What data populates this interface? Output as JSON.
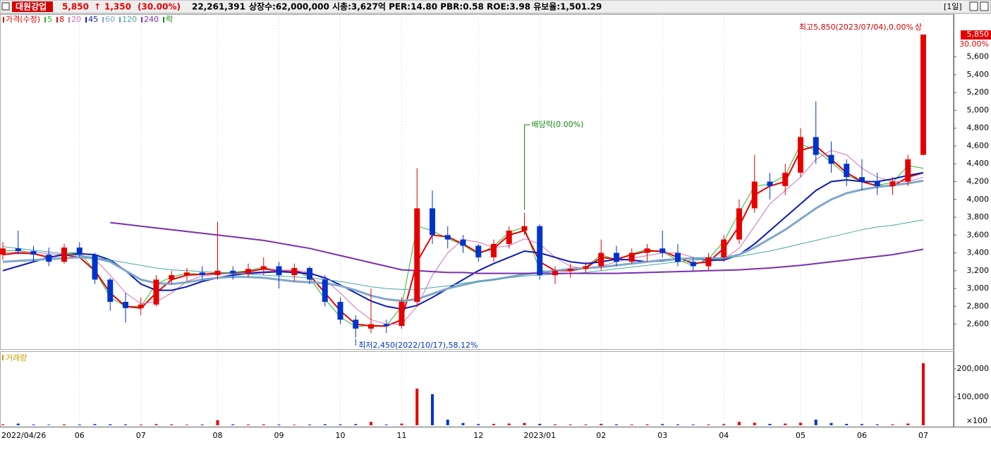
{
  "header": {
    "name": "대원강업",
    "price": "5,850",
    "arrow": "↑",
    "change": "1,350",
    "change_pct": "(30.00%)",
    "volume": "22,261,391",
    "stats": "상장수:62,000,000 시총:3,627억 PER:14.80 PBR:0.58 ROE:3.98 유보율:1,501.29",
    "period": "[1일]"
  },
  "chart_data": {
    "type": "candlestick",
    "price_label": "가격(수정)",
    "ex_dividend_legend": "락",
    "categories": [
      "2022/04/26",
      null,
      null,
      null,
      null,
      "06",
      null,
      null,
      null,
      "07",
      null,
      null,
      null,
      null,
      "08",
      null,
      null,
      null,
      "09",
      null,
      null,
      null,
      "10",
      null,
      null,
      null,
      "11",
      null,
      null,
      null,
      null,
      "12",
      null,
      null,
      null,
      "2023/01",
      null,
      null,
      null,
      "02",
      null,
      null,
      null,
      "03",
      null,
      null,
      null,
      "04",
      null,
      null,
      null,
      null,
      "05",
      null,
      null,
      null,
      "06",
      null,
      null,
      null,
      "07"
    ],
    "open": [
      3380,
      3450,
      3420,
      3380,
      3300,
      3460,
      3380,
      3100,
      2850,
      2780,
      2820,
      3100,
      3150,
      3180,
      3150,
      3200,
      3170,
      3220,
      3250,
      3150,
      3230,
      3100,
      2850,
      2650,
      2550,
      2600,
      2580,
      2850,
      3900,
      3600,
      3550,
      3480,
      3350,
      3500,
      3650,
      3700,
      3150,
      3200,
      3220,
      3250,
      3400,
      3300,
      3400,
      3450,
      3400,
      3300,
      3250,
      3350,
      3550,
      3900,
      4200,
      4150,
      4300,
      4700,
      4500,
      4400,
      4250,
      4200,
      4150,
      4200,
      4500
    ],
    "high": [
      3520,
      3650,
      3480,
      3460,
      3500,
      3520,
      3400,
      3120,
      2950,
      2900,
      3150,
      3200,
      3230,
      3250,
      3750,
      3250,
      3280,
      3350,
      3300,
      3280,
      3250,
      3150,
      2900,
      2700,
      3000,
      2650,
      2900,
      4350,
      4100,
      3700,
      3600,
      3500,
      3550,
      3700,
      3850,
      3720,
      3250,
      3280,
      3300,
      3550,
      3480,
      3450,
      3500,
      3650,
      3500,
      3350,
      3400,
      3600,
      4000,
      4500,
      4300,
      4400,
      4800,
      5100,
      4650,
      4450,
      4450,
      4300,
      4250,
      4500,
      5850
    ],
    "low": [
      3320,
      3380,
      3300,
      3250,
      3280,
      3350,
      3050,
      2750,
      2620,
      2700,
      2800,
      3050,
      3080,
      3100,
      3100,
      3100,
      3130,
      3150,
      3000,
      3080,
      3050,
      2800,
      2600,
      2450,
      2500,
      2500,
      2550,
      2800,
      3500,
      3450,
      3400,
      3300,
      3300,
      3450,
      3600,
      3100,
      3050,
      3120,
      3180,
      3200,
      3250,
      3280,
      3300,
      3350,
      3250,
      3200,
      3200,
      3300,
      3500,
      3850,
      4000,
      4050,
      4250,
      4400,
      4300,
      4150,
      4100,
      4050,
      4050,
      4150,
      4500
    ],
    "close": [
      3450,
      3420,
      3380,
      3300,
      3460,
      3380,
      3100,
      2850,
      2780,
      2820,
      3100,
      3150,
      3180,
      3150,
      3200,
      3170,
      3220,
      3250,
      3150,
      3230,
      3100,
      2850,
      2650,
      2550,
      2600,
      2580,
      2850,
      3900,
      3600,
      3550,
      3480,
      3350,
      3500,
      3650,
      3700,
      3150,
      3200,
      3220,
      3250,
      3400,
      3300,
      3400,
      3450,
      3400,
      3300,
      3250,
      3350,
      3550,
      3900,
      4200,
      4150,
      4300,
      4700,
      4500,
      4400,
      4250,
      4200,
      4150,
      4200,
      4450,
      5850
    ],
    "up_color": "#e60000",
    "down_color": "#0033cc",
    "ylim": [
      2320,
      6080
    ],
    "yticks": [
      {
        "value": 2600,
        "label": "2,600"
      },
      {
        "value": 2800,
        "label": "2,800"
      },
      {
        "value": 3000,
        "label": "3,000"
      },
      {
        "value": 3200,
        "label": "3,200"
      },
      {
        "value": 3400,
        "label": "3,400"
      },
      {
        "value": 3600,
        "label": "3,600"
      },
      {
        "value": 3800,
        "label": "3,800"
      },
      {
        "value": 4000,
        "label": "4,000"
      },
      {
        "value": 4200,
        "label": "4,200"
      },
      {
        "value": 4400,
        "label": "4,400"
      },
      {
        "value": 4600,
        "label": "4,600"
      },
      {
        "value": 4800,
        "label": "4,800"
      },
      {
        "value": 5000,
        "label": "5,000"
      },
      {
        "value": 5200,
        "label": "5,200"
      },
      {
        "value": 5400,
        "label": "5,400"
      },
      {
        "value": 5600,
        "label": "5,600"
      }
    ],
    "grid": false,
    "series": [
      {
        "name": "5",
        "color": "#22bb22",
        "width": 1,
        "values": [
          3420,
          3430,
          3400,
          3340,
          3400,
          3400,
          3200,
          2900,
          2800,
          2800,
          3050,
          3130,
          3170,
          3160,
          3180,
          3180,
          3200,
          3240,
          3180,
          3210,
          3120,
          2880,
          2680,
          2570,
          2590,
          2580,
          2800,
          3700,
          3650,
          3560,
          3490,
          3380,
          3480,
          3630,
          3690,
          3200,
          3190,
          3210,
          3240,
          3380,
          3320,
          3390,
          3440,
          3410,
          3320,
          3260,
          3330,
          3530,
          3850,
          4150,
          4170,
          4270,
          4620,
          4550,
          4420,
          4270,
          4200,
          4160,
          4190,
          4380,
          4350
        ]
      },
      {
        "name": "8",
        "color": "#e60000",
        "width": 2,
        "values": [
          3380,
          3400,
          3390,
          3350,
          3380,
          3350,
          3200,
          2950,
          2800,
          2780,
          2950,
          3100,
          3150,
          3160,
          3170,
          3170,
          3190,
          3220,
          3200,
          3200,
          3150,
          2950,
          2750,
          2600,
          2580,
          2580,
          2650,
          3300,
          3600,
          3580,
          3500,
          3400,
          3450,
          3600,
          3650,
          3300,
          3200,
          3200,
          3230,
          3350,
          3330,
          3380,
          3420,
          3420,
          3350,
          3280,
          3300,
          3450,
          3700,
          4050,
          4150,
          4200,
          4550,
          4600,
          4450,
          4300,
          4200,
          4150,
          4150,
          4250,
          4300
        ]
      },
      {
        "name": "20",
        "color": "#d070c0",
        "width": 1,
        "values": [
          3400,
          3410,
          3410,
          3390,
          3380,
          3380,
          3330,
          3150,
          2950,
          2830,
          2850,
          2950,
          3080,
          3140,
          3160,
          3170,
          3180,
          3190,
          3200,
          3200,
          3190,
          3100,
          2950,
          2780,
          2650,
          2600,
          2600,
          2800,
          3150,
          3400,
          3550,
          3520,
          3460,
          3480,
          3560,
          3500,
          3350,
          3250,
          3220,
          3250,
          3300,
          3340,
          3370,
          3400,
          3400,
          3350,
          3300,
          3330,
          3450,
          3700,
          3950,
          4100,
          4250,
          4450,
          4550,
          4500,
          4350,
          4250,
          4200,
          4200,
          4250
        ]
      },
      {
        "name": "45",
        "color": "#0a1ab8",
        "width": 2,
        "values": [
          3200,
          3250,
          3300,
          3350,
          3380,
          3390,
          3380,
          3320,
          3200,
          3050,
          2980,
          2980,
          3020,
          3080,
          3120,
          3150,
          3170,
          3180,
          3190,
          3180,
          3170,
          3120,
          3040,
          2950,
          2860,
          2800,
          2770,
          2810,
          2900,
          3000,
          3100,
          3200,
          3280,
          3350,
          3420,
          3400,
          3350,
          3300,
          3280,
          3300,
          3330,
          3320,
          3300,
          3310,
          3330,
          3340,
          3320,
          3320,
          3380,
          3500,
          3650,
          3800,
          3950,
          4100,
          4200,
          4220,
          4200,
          4200,
          4230,
          4270,
          4300
        ]
      },
      {
        "name": "60",
        "color": "#7fa7cc",
        "width": 3,
        "values": [
          3300,
          3310,
          3320,
          3330,
          3340,
          3350,
          3340,
          3300,
          3200,
          3100,
          3060,
          3050,
          3070,
          3100,
          3120,
          3130,
          3130,
          3120,
          3100,
          3080,
          3070,
          3060,
          3030,
          2980,
          2920,
          2880,
          2860,
          2880,
          2940,
          3000,
          3040,
          3080,
          3100,
          3130,
          3160,
          3180,
          3200,
          3220,
          3230,
          3240,
          3260,
          3280,
          3300,
          3320,
          3330,
          3340,
          3340,
          3340,
          3380,
          3460,
          3560,
          3660,
          3780,
          3900,
          4000,
          4070,
          4110,
          4140,
          4160,
          4180,
          4210
        ]
      },
      {
        "name": "120",
        "color": "#48a8a0",
        "width": 1,
        "values": [
          3470,
          3450,
          3430,
          3410,
          3390,
          3370,
          3350,
          3320,
          3290,
          3260,
          3230,
          3210,
          3200,
          3190,
          3180,
          3170,
          3160,
          3150,
          3140,
          3130,
          3120,
          3100,
          3080,
          3050,
          3020,
          3000,
          2990,
          2990,
          3010,
          3030,
          3060,
          3080,
          3100,
          3120,
          3140,
          3150,
          3160,
          3170,
          3180,
          3200,
          3220,
          3240,
          3260,
          3280,
          3300,
          3320,
          3330,
          3340,
          3360,
          3390,
          3420,
          3460,
          3500,
          3540,
          3580,
          3620,
          3660,
          3690,
          3710,
          3740,
          3770
        ]
      },
      {
        "name": "240",
        "color": "#7a2fb0",
        "width": 2,
        "values": [
          null,
          null,
          null,
          null,
          null,
          null,
          null,
          3740,
          3720,
          3700,
          3680,
          3660,
          3640,
          3620,
          3600,
          3580,
          3560,
          3540,
          3510,
          3480,
          3450,
          3410,
          3370,
          3330,
          3290,
          3250,
          3210,
          3200,
          3190,
          3180,
          3180,
          3170,
          3170,
          3170,
          3170,
          3170,
          3170,
          3170,
          3170,
          3170,
          3170,
          3175,
          3180,
          3185,
          3190,
          3195,
          3200,
          3205,
          3210,
          3220,
          3230,
          3245,
          3260,
          3280,
          3300,
          3320,
          3340,
          3360,
          3380,
          3410,
          3440
        ]
      }
    ],
    "annotations": {
      "high": "최고5,850(2023/07/04),0.00%",
      "high_mark": "상",
      "low": "최저2,450(2022/10/17),58.12%",
      "dividend": "배당락(0.00%)"
    },
    "current_price": {
      "label": "5,850",
      "change_label": "30.00%"
    },
    "volume": {
      "title": "거래량",
      "unit_label": "×100",
      "values": [
        3000,
        6000,
        2500,
        2000,
        3000,
        2500,
        4000,
        3500,
        3000,
        2500,
        4000,
        3000,
        2000,
        2500,
        18000,
        3000,
        2500,
        3000,
        2500,
        2000,
        2500,
        3500,
        3000,
        4000,
        12000,
        2500,
        6000,
        130000,
        110000,
        20000,
        8000,
        4000,
        5000,
        6000,
        8000,
        5000,
        3000,
        2500,
        2500,
        5000,
        3000,
        2500,
        3000,
        4000,
        3000,
        2500,
        2500,
        4000,
        12000,
        9000,
        5000,
        6000,
        9000,
        20000,
        8000,
        5000,
        4000,
        3000,
        3000,
        6000,
        220000
      ],
      "ylim": [
        -5000,
        262500
      ],
      "yticks": [
        {
          "value": 100000,
          "label": "100,000"
        },
        {
          "value": 200000,
          "label": "200,000"
        }
      ]
    }
  }
}
